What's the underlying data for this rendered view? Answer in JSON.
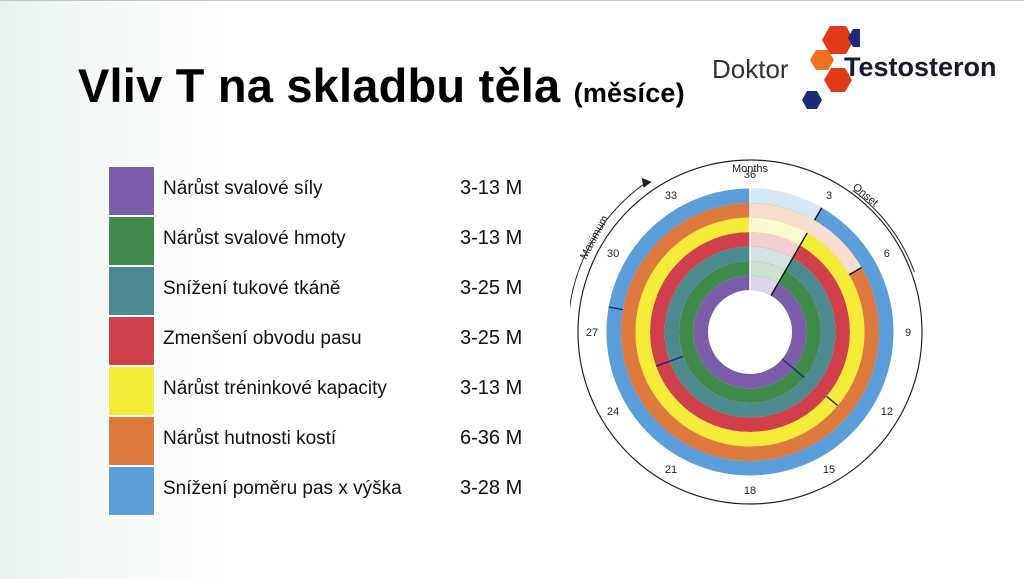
{
  "slide": {
    "title": "Vliv T na skladbu těla",
    "title_suffix": "(měsíce)"
  },
  "logo": {
    "word1": "Doktor",
    "word2": "Testosteron",
    "colors": [
      "#e03a1a",
      "#1c2a7a",
      "#f07020"
    ]
  },
  "legend": [
    {
      "label": "Nárůst svalové síly",
      "value": "3-13 M",
      "color": "#7b5ca8"
    },
    {
      "label": "Nárůst svalové hmoty",
      "value": "3-13 M",
      "color": "#3f8a4b"
    },
    {
      "label": "Snížení tukové tkáně",
      "value": "3-25 M",
      "color": "#4d8a8f"
    },
    {
      "label": "Zmenšení obvodu pasu",
      "value": "3-25 M",
      "color": "#d0404a"
    },
    {
      "label": "Nárůst tréninkové kapacity",
      "value": "3-13 M",
      "color": "#f5ec3a"
    },
    {
      "label": "Nárůst hutnosti kostí",
      "value": "6-36 M",
      "color": "#de7a3e"
    },
    {
      "label": "Snížení poměru pas x výška",
      "value": "3-28 M",
      "color": "#5b9ed9"
    }
  ],
  "chart_data": {
    "type": "radial-timeline",
    "months_label": "Months",
    "onset_label": "Onset",
    "maximum_label": "Maximum",
    "month_ticks": [
      "36",
      "3",
      "6",
      "9",
      "12",
      "15",
      "18",
      "21",
      "24",
      "27",
      "30",
      "33"
    ],
    "rings": [
      {
        "name": "Nárůst svalové síly",
        "color": "#7b5ca8",
        "onset": 3,
        "maximum": 13
      },
      {
        "name": "Nárůst svalové hmoty",
        "color": "#3f8a4b",
        "onset": 3,
        "maximum": 13
      },
      {
        "name": "Snížení tukové tkáně",
        "color": "#4d8a8f",
        "onset": 3,
        "maximum": 25
      },
      {
        "name": "Zmenšení obvodu pasu",
        "color": "#d0404a",
        "onset": 3,
        "maximum": 25
      },
      {
        "name": "Nárůst tréninkové kapacity",
        "color": "#f5ec3a",
        "onset": 3,
        "maximum": 13
      },
      {
        "name": "Nárůst hutnosti kostí",
        "color": "#de7a3e",
        "onset": 6,
        "maximum": 36
      },
      {
        "name": "Snížení poměru pas x výška",
        "color": "#5b9ed9",
        "onset": 3,
        "maximum": 28
      }
    ]
  }
}
